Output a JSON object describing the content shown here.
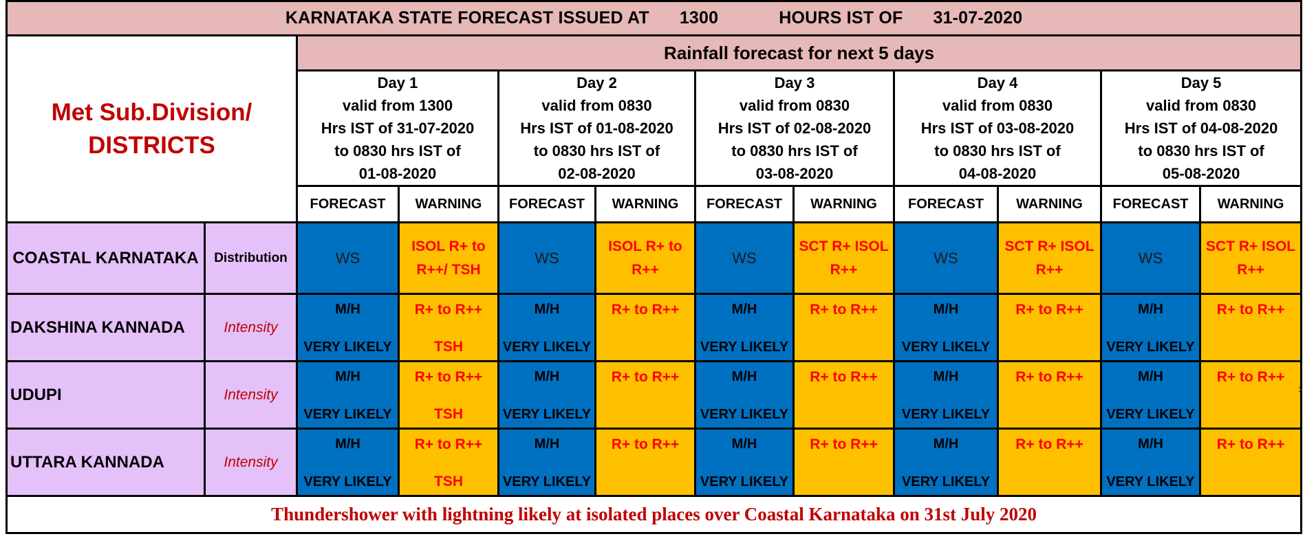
{
  "title": {
    "part1": "KARNATAKA STATE FORECAST ISSUED AT",
    "time": "1300",
    "part2": "HOURS IST OF",
    "date": "31-07-2020"
  },
  "met_sub_label": "Met Sub.Division/\nDISTRICTS",
  "rainfall_header": "Rainfall forecast for next 5 days",
  "days": [
    {
      "label": "Day 1\nvalid from  1300\nHrs IST of  31-07-2020\nto 0830 hrs IST of\n01-08-2020"
    },
    {
      "label": "Day 2\nvalid from 0830\nHrs IST of    01-08-2020\nto 0830 hrs IST of\n02-08-2020"
    },
    {
      "label": "Day 3\nvalid from 0830\nHrs IST of    02-08-2020\nto 0830 hrs IST of\n03-08-2020"
    },
    {
      "label": "Day 4\nvalid from 0830\nHrs IST of  03-08-2020\nto 0830 hrs IST of\n04-08-2020"
    },
    {
      "label": "Day 5\nvalid from 0830\nHrs IST of    04-08-2020\nto 0830 hrs IST of\n05-08-2020"
    }
  ],
  "col_forecast": "FORECAST",
  "col_warning": "WARNING",
  "coastal": {
    "region": "COASTAL KARNATAKA",
    "type": "Distribution",
    "forecast": [
      "WS",
      "WS",
      "WS",
      "WS",
      "WS"
    ],
    "warning": [
      "ISOL R+ to\nR++/ TSH",
      "ISOL R+ to\nR++",
      "SCT R+ ISOL\nR++",
      "SCT R+ ISOL\nR++",
      "SCT R+ ISOL\nR++"
    ]
  },
  "districts": [
    {
      "name": "DAKSHINA KANNADA",
      "type": "Intensity",
      "forecast_top": "M/H",
      "forecast_bottom": "VERY LIKELY",
      "warning_top": [
        "R+ to R++",
        "R+ to R++",
        "R+ to R++",
        "R+ to R++",
        "R+ to R++"
      ],
      "warning_bottom": [
        "TSH",
        "",
        "",
        "",
        ""
      ]
    },
    {
      "name": "UDUPI",
      "type": "Intensity",
      "forecast_top": "M/H",
      "forecast_bottom": "VERY LIKELY",
      "warning_top": [
        "R+ to R++",
        "R+ to R++",
        "R+ to R++",
        "R+ to R++",
        "R+ to R++"
      ],
      "warning_bottom": [
        "TSH",
        "",
        "",
        "",
        ""
      ]
    },
    {
      "name": "UTTARA KANNADA",
      "type": "Intensity",
      "forecast_top": "M/H",
      "forecast_bottom": "VERY LIKELY",
      "warning_top": [
        "R+ to R++",
        "R+ to R++",
        "R+ to R++",
        "R+ to R++",
        "R+ to R++"
      ],
      "warning_bottom": [
        "TSH",
        "",
        "",
        "",
        ""
      ]
    }
  ],
  "footer_note": "Thundershower with lightning likely at isolated places over Coastal Karnataka on 31st July 2020",
  "colors": {
    "title_bg": "#e6b8b7",
    "region_bg": "#e4c1f9",
    "forecast_bg": "#0070c0",
    "warning_bg": "#ffc000",
    "warning_text": "#ff0000",
    "heading_red": "#c00000"
  }
}
